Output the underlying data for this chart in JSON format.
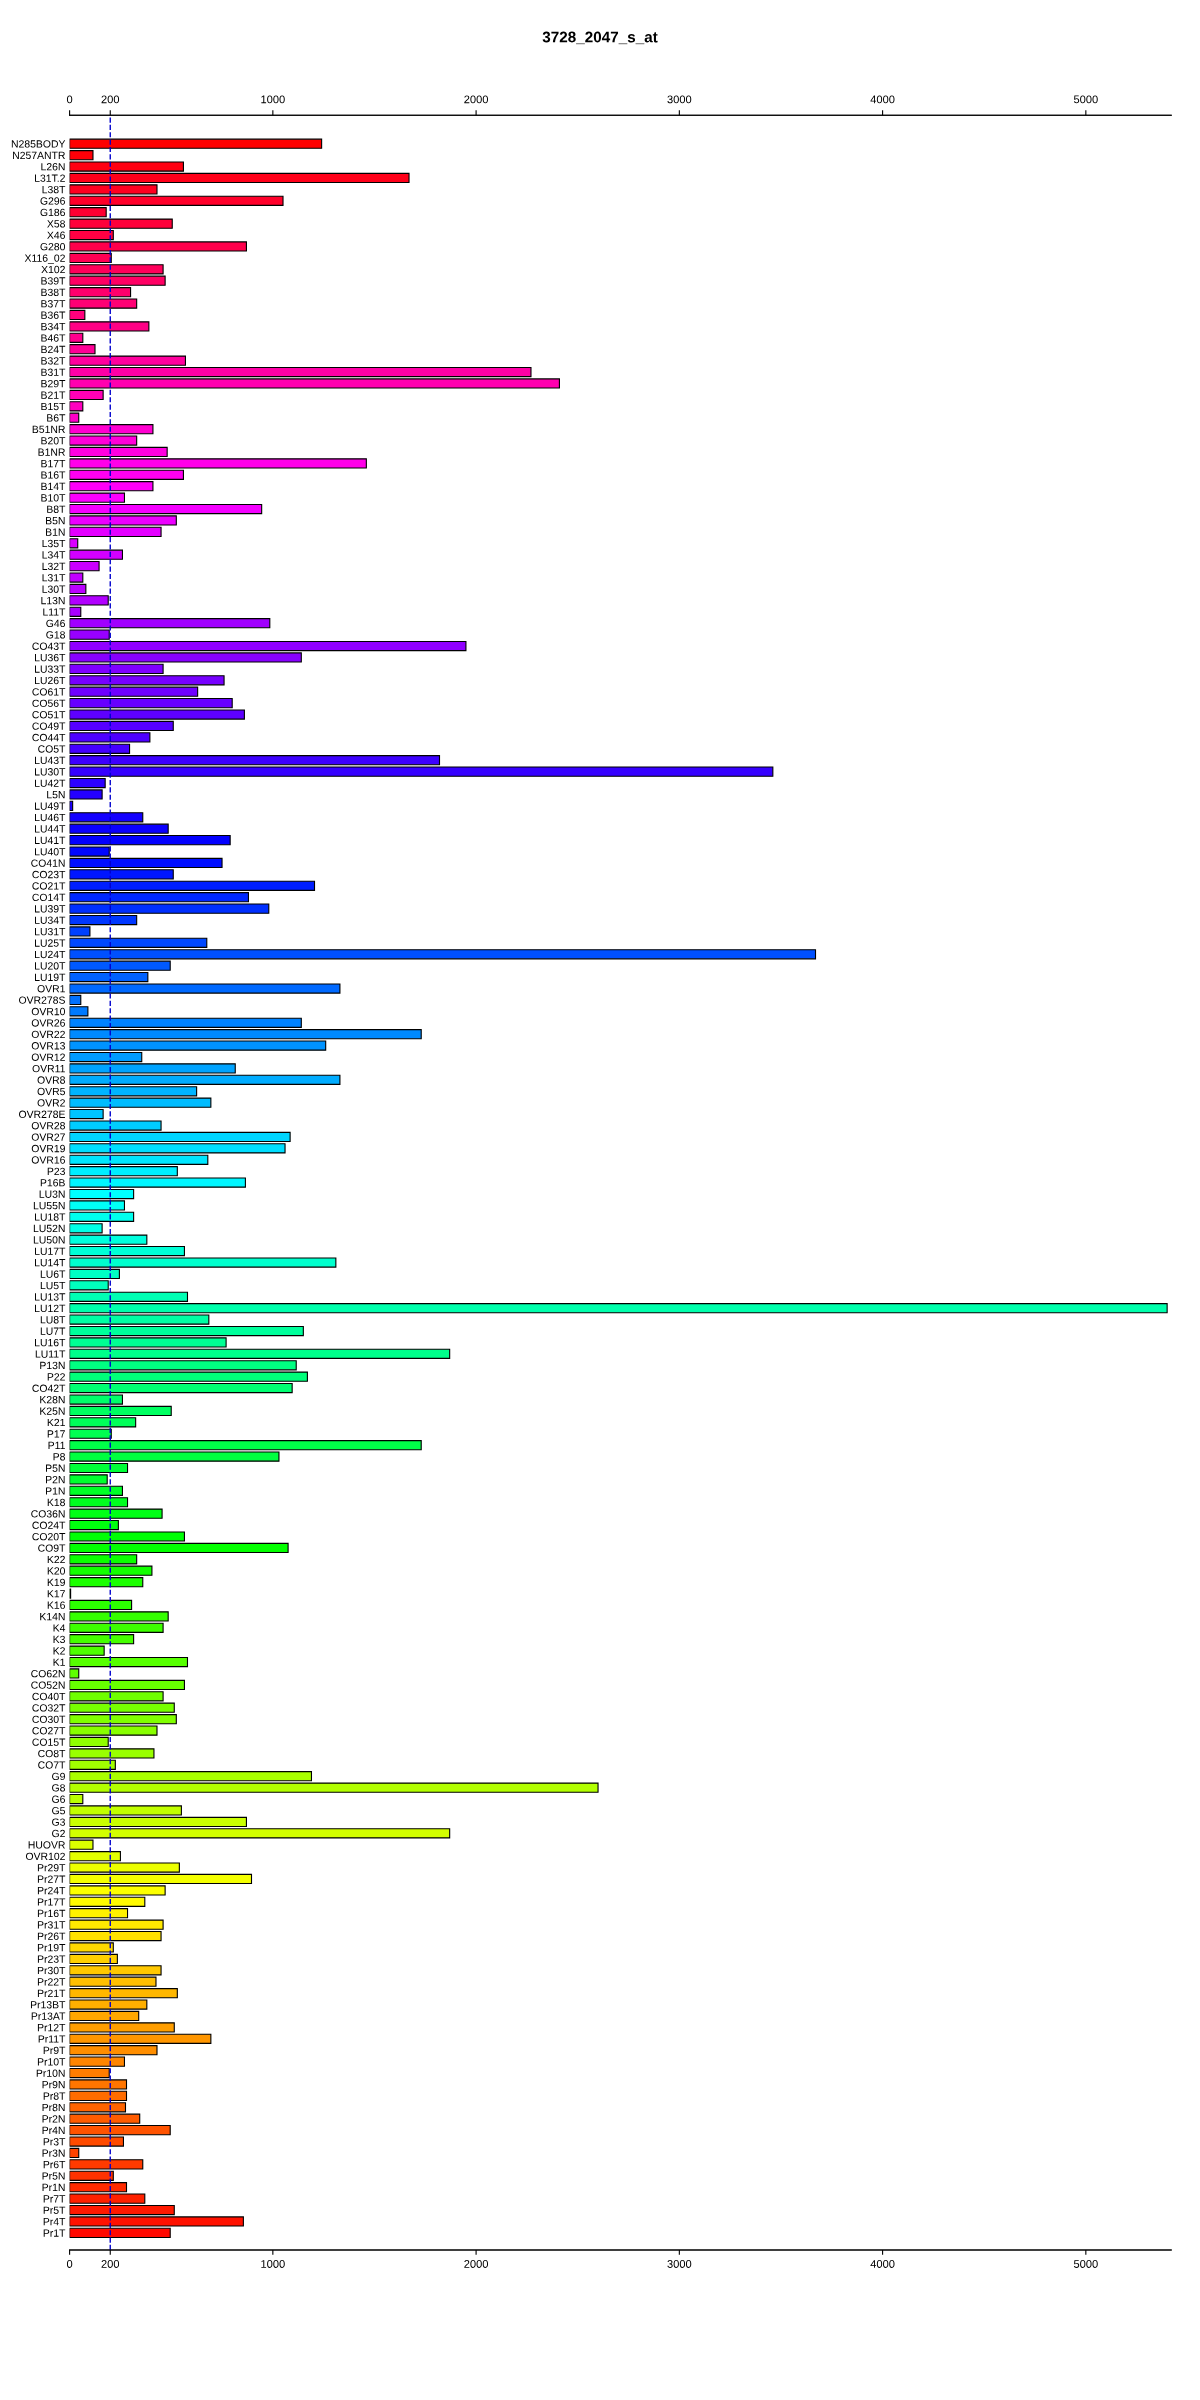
{
  "chart_data": {
    "type": "bar",
    "orientation": "horizontal",
    "title": "3728_2047_s_at",
    "categories": [
      "N285BODY",
      "N257ANTR",
      "L26N",
      "L31T.2",
      "L38T",
      "G296",
      "G186",
      "X58",
      "X46",
      "G280",
      "X116_02",
      "X102",
      "B39T",
      "B38T",
      "B37T",
      "B36T",
      "B34T",
      "B46T",
      "B24T",
      "B32T",
      "B31T",
      "B29T",
      "B21T",
      "B15T",
      "B6T",
      "B51NR",
      "B20T",
      "B1NR",
      "B17T",
      "B16T",
      "B14T",
      "B10T",
      "B8T",
      "B5N",
      "B1N",
      "L35T",
      "L34T",
      "L32T",
      "L31T",
      "L30T",
      "L13N",
      "L11T",
      "G46",
      "G18",
      "CO43T",
      "LU36T",
      "LU33T",
      "LU26T",
      "CO61T",
      "CO56T",
      "CO51T",
      "CO49T",
      "CO44T",
      "CO5T",
      "LU43T",
      "LU30T",
      "LU42T",
      "L5N",
      "LU49T",
      "LU46T",
      "LU44T",
      "LU41T",
      "LU40T",
      "CO41N",
      "CO23T",
      "CO21T",
      "CO14T",
      "LU39T",
      "LU34T",
      "LU31T",
      "LU25T",
      "LU24T",
      "LU20T",
      "LU19T",
      "OVR1",
      "OVR278S",
      "OVR10",
      "OVR26",
      "OVR22",
      "OVR13",
      "OVR12",
      "OVR11",
      "OVR8",
      "OVR5",
      "OVR2",
      "OVR278E",
      "OVR28",
      "OVR27",
      "OVR19",
      "OVR16",
      "P23",
      "P16B",
      "LU3N",
      "LU55N",
      "LU18T",
      "LU52N",
      "LU50N",
      "LU17T",
      "LU14T",
      "LU6T",
      "LU5T",
      "LU13T",
      "LU12T",
      "LU8T",
      "LU7T",
      "LU16T",
      "LU11T",
      "P13N",
      "P22",
      "CO42T",
      "K28N",
      "K25N",
      "K21",
      "P17",
      "P11",
      "P8",
      "P5N",
      "P2N",
      "P1N",
      "K18",
      "CO36N",
      "CO24T",
      "CO20T",
      "CO9T",
      "K22",
      "K20",
      "K19",
      "K17",
      "K16",
      "K14N",
      "K4",
      "K3",
      "K2",
      "K1",
      "CO62N",
      "CO52N",
      "CO40T",
      "CO32T",
      "CO30T",
      "CO27T",
      "CO15T",
      "CO8T",
      "CO7T",
      "G9",
      "G8",
      "G6",
      "G5",
      "G3",
      "G2",
      "HUOVR",
      "OVR102",
      "Pr29T",
      "Pr27T",
      "Pr24T",
      "Pr17T",
      "Pr16T",
      "Pr31T",
      "Pr26T",
      "Pr19T",
      "Pr23T",
      "Pr30T",
      "Pr22T",
      "Pr21T",
      "Pr13BT",
      "Pr13AT",
      "Pr12T",
      "Pr11T",
      "Pr9T",
      "Pr10T",
      "Pr10N",
      "Pr9N",
      "Pr8T",
      "Pr8N",
      "Pr2N",
      "Pr4N",
      "Pr3T",
      "Pr3N",
      "Pr6T",
      "Pr5N",
      "Pr1N",
      "Pr7T",
      "Pr5T",
      "Pr4T",
      "Pr1T"
    ],
    "values": [
      1240,
      115,
      560,
      1670,
      430,
      1050,
      180,
      505,
      215,
      870,
      205,
      460,
      470,
      300,
      330,
      75,
      390,
      65,
      125,
      570,
      2270,
      2410,
      165,
      65,
      45,
      410,
      330,
      480,
      1460,
      560,
      410,
      270,
      945,
      525,
      450,
      40,
      260,
      145,
      65,
      80,
      190,
      55,
      985,
      195,
      1950,
      1140,
      460,
      760,
      630,
      800,
      860,
      510,
      395,
      295,
      1820,
      3460,
      175,
      160,
      15,
      360,
      485,
      790,
      195,
      750,
      510,
      1205,
      880,
      980,
      330,
      100,
      675,
      3670,
      495,
      385,
      1330,
      55,
      90,
      1140,
      1730,
      1260,
      355,
      815,
      1330,
      625,
      695,
      165,
      450,
      1085,
      1060,
      680,
      530,
      865,
      315,
      270,
      315,
      160,
      380,
      565,
      1310,
      245,
      190,
      580,
      5400,
      685,
      1150,
      770,
      1870,
      1115,
      1170,
      1095,
      260,
      500,
      325,
      205,
      1730,
      1030,
      285,
      185,
      260,
      285,
      455,
      240,
      565,
      1075,
      330,
      405,
      360,
      5,
      305,
      485,
      460,
      315,
      170,
      580,
      45,
      565,
      460,
      515,
      525,
      430,
      190,
      415,
      225,
      1190,
      2600,
      65,
      550,
      870,
      1870,
      115,
      250,
      540,
      895,
      470,
      370,
      285,
      460,
      450,
      215,
      235,
      450,
      425,
      530,
      380,
      340,
      515,
      695,
      430,
      270,
      195,
      280,
      280,
      275,
      345,
      495,
      265,
      45,
      360,
      215,
      280,
      370,
      515,
      855,
      495
    ],
    "colors": [
      "#ff0000",
      "#ff0008",
      "#ff0011",
      "#ff0019",
      "#ff0021",
      "#ff002a",
      "#ff0032",
      "#ff003a",
      "#ff0043",
      "#ff004b",
      "#ff0053",
      "#ff005b",
      "#ff0064",
      "#ff006c",
      "#ff0074",
      "#ff007d",
      "#ff0085",
      "#ff008d",
      "#ff0096",
      "#ff009e",
      "#ff00a6",
      "#ff00af",
      "#ff00b7",
      "#ff00bf",
      "#ff00c8",
      "#ff00d0",
      "#ff00d8",
      "#ff00e0",
      "#ff00e9",
      "#ff00f1",
      "#ff00f9",
      "#fc00ff",
      "#f400ff",
      "#ec00ff",
      "#e300ff",
      "#db00ff",
      "#d300ff",
      "#ca00ff",
      "#c200ff",
      "#ba00ff",
      "#b100ff",
      "#a900ff",
      "#a100ff",
      "#9800ff",
      "#9000ff",
      "#8800ff",
      "#7f00ff",
      "#7700ff",
      "#6f00ff",
      "#6700ff",
      "#5e00ff",
      "#5600ff",
      "#4e00ff",
      "#4500ff",
      "#3d00ff",
      "#3500ff",
      "#2c00ff",
      "#2400ff",
      "#1c00ff",
      "#1300ff",
      "#0b00ff",
      "#0300ff",
      "#0006ff",
      "#000eff",
      "#0016ff",
      "#001eff",
      "#0027ff",
      "#002fff",
      "#0037ff",
      "#0040ff",
      "#0048ff",
      "#0050ff",
      "#0059ff",
      "#0061ff",
      "#0069ff",
      "#0071ff",
      "#007aff",
      "#0082ff",
      "#008aff",
      "#0093ff",
      "#009bff",
      "#00a3ff",
      "#00acff",
      "#00b4ff",
      "#00bcff",
      "#00c5ff",
      "#00cdff",
      "#00d5ff",
      "#00deff",
      "#00e6ff",
      "#00eeff",
      "#00f6ff",
      "#00ffff",
      "#00fff7",
      "#00ffee",
      "#00ffe6",
      "#00ffde",
      "#00ffd6",
      "#00ffcd",
      "#00ffc5",
      "#00ffbd",
      "#00ffb4",
      "#00ffac",
      "#00ffa4",
      "#00ff9b",
      "#00ff93",
      "#00ff8b",
      "#00ff82",
      "#00ff7a",
      "#00ff72",
      "#00ff6a",
      "#00ff61",
      "#00ff59",
      "#00ff51",
      "#00ff48",
      "#00ff40",
      "#00ff38",
      "#00ff2f",
      "#00ff27",
      "#00ff1f",
      "#00ff16",
      "#00ff0e",
      "#00ff06",
      "#03ff00",
      "#0bff00",
      "#13ff00",
      "#1cff00",
      "#24ff00",
      "#2cff00",
      "#35ff00",
      "#3dff00",
      "#45ff00",
      "#4eff00",
      "#56ff00",
      "#5eff00",
      "#67ff00",
      "#6fff00",
      "#77ff00",
      "#80ff00",
      "#88ff00",
      "#90ff00",
      "#99ff00",
      "#a1ff00",
      "#a9ff00",
      "#b2ff00",
      "#baff00",
      "#c2ff00",
      "#caff00",
      "#d3ff00",
      "#dbff00",
      "#e3ff00",
      "#ecff00",
      "#f4ff00",
      "#fcff00",
      "#fffa00",
      "#fff100",
      "#ffe900",
      "#ffe100",
      "#ffd800",
      "#ffd000",
      "#ffc800",
      "#ffbf00",
      "#ffb700",
      "#ffaf00",
      "#ffa700",
      "#ff9e00",
      "#ff9600",
      "#ff8e00",
      "#ff8500",
      "#ff7d00",
      "#ff7500",
      "#ff6c00",
      "#ff6400",
      "#ff5c00",
      "#ff5300",
      "#ff4b00",
      "#ff4300",
      "#ff3a00",
      "#ff3200",
      "#ff2a00",
      "#ff2100",
      "#ff1900",
      "#ff1100",
      "#ff0800"
    ],
    "xlim": [
      0,
      5420
    ],
    "xticks": [
      0,
      200,
      1000,
      2000,
      3000,
      4000,
      5000
    ],
    "x2lim": [
      0,
      5420
    ],
    "x2ticks": [
      0,
      200,
      1000,
      2000,
      3000,
      4000,
      5000
    ],
    "ref_lines": [
      {
        "axis": "x",
        "value": 200,
        "color": "#0000cd",
        "line_style": "dashed"
      }
    ]
  }
}
